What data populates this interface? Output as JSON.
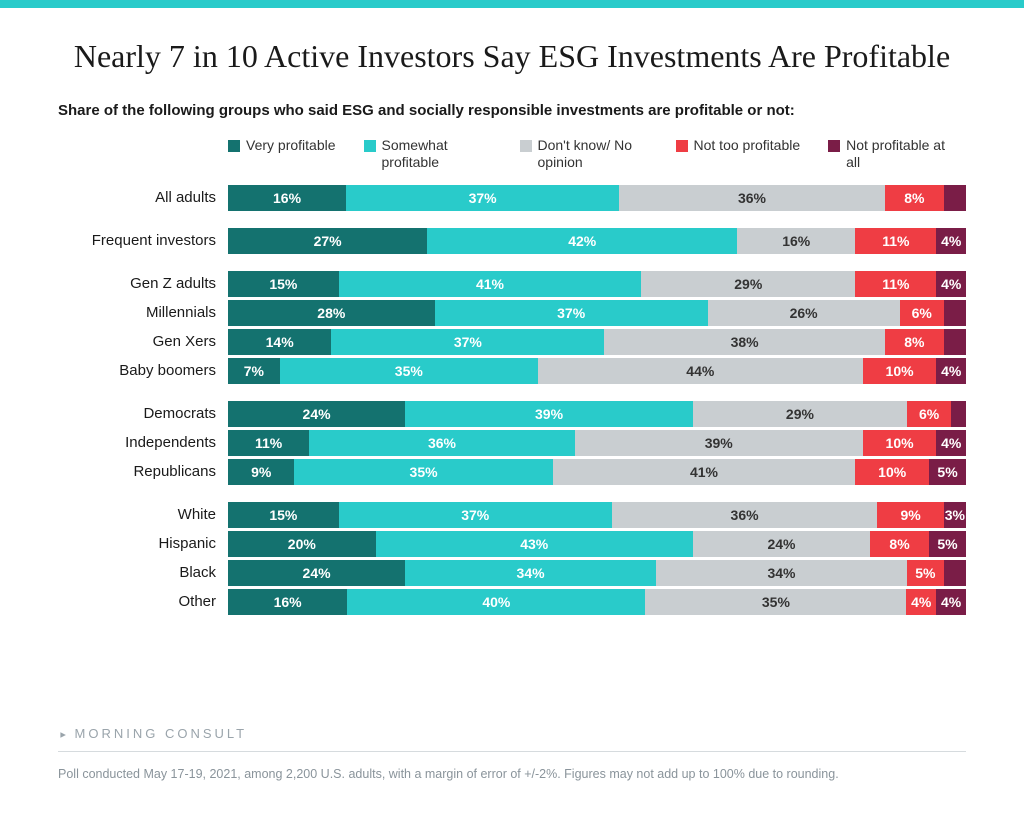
{
  "accent_bar_color": "#29cbca",
  "title": "Nearly 7 in 10 Active Investors Say ESG Investments Are Profitable",
  "subtitle": "Share of the following groups who said ESG and socially responsible investments are profitable or not:",
  "legend": [
    {
      "label": "Very profitable",
      "color": "#14726f"
    },
    {
      "label": "Somewhat profitable",
      "color": "#29cbca"
    },
    {
      "label": "Don't know/ No opinion",
      "color": "#c9ced1"
    },
    {
      "label": "Not too profitable",
      "color": "#ef3d44"
    },
    {
      "label": "Not profitable at all",
      "color": "#7a1d47"
    }
  ],
  "label_text_colors": {
    "dark_on_light": "#333333",
    "light_on_dark": "#ffffff"
  },
  "groups": [
    {
      "rows": [
        {
          "label": "All adults",
          "values": [
            16,
            37,
            36,
            8,
            3
          ],
          "show": [
            true,
            true,
            true,
            true,
            false
          ]
        }
      ]
    },
    {
      "rows": [
        {
          "label": "Frequent investors",
          "values": [
            27,
            42,
            16,
            11,
            4
          ],
          "show": [
            true,
            true,
            true,
            true,
            true
          ]
        }
      ]
    },
    {
      "rows": [
        {
          "label": "Gen Z adults",
          "values": [
            15,
            41,
            29,
            11,
            4
          ],
          "show": [
            true,
            true,
            true,
            true,
            true
          ]
        },
        {
          "label": "Millennials",
          "values": [
            28,
            37,
            26,
            6,
            3
          ],
          "show": [
            true,
            true,
            true,
            true,
            false
          ]
        },
        {
          "label": "Gen Xers",
          "values": [
            14,
            37,
            38,
            8,
            3
          ],
          "show": [
            true,
            true,
            true,
            true,
            false
          ]
        },
        {
          "label": "Baby boomers",
          "values": [
            7,
            35,
            44,
            10,
            4
          ],
          "show": [
            true,
            true,
            true,
            true,
            true
          ]
        }
      ]
    },
    {
      "rows": [
        {
          "label": "Democrats",
          "values": [
            24,
            39,
            29,
            6,
            2
          ],
          "show": [
            true,
            true,
            true,
            true,
            false
          ]
        },
        {
          "label": "Independents",
          "values": [
            11,
            36,
            39,
            10,
            4
          ],
          "show": [
            true,
            true,
            true,
            true,
            true
          ]
        },
        {
          "label": "Republicans",
          "values": [
            9,
            35,
            41,
            10,
            5
          ],
          "show": [
            true,
            true,
            true,
            true,
            true
          ]
        }
      ]
    },
    {
      "rows": [
        {
          "label": "White",
          "values": [
            15,
            37,
            36,
            9,
            3
          ],
          "show": [
            true,
            true,
            true,
            true,
            true
          ]
        },
        {
          "label": "Hispanic",
          "values": [
            20,
            43,
            24,
            8,
            5
          ],
          "show": [
            true,
            true,
            true,
            true,
            true
          ]
        },
        {
          "label": "Black",
          "values": [
            24,
            34,
            34,
            5,
            3
          ],
          "show": [
            true,
            true,
            true,
            true,
            false
          ]
        },
        {
          "label": "Other",
          "values": [
            16,
            40,
            35,
            4,
            4
          ],
          "show": [
            true,
            true,
            true,
            true,
            true
          ]
        }
      ]
    }
  ],
  "brand": "MORNING CONSULT",
  "footnote": "Poll conducted May 17-19, 2021, among 2,200 U.S. adults, with a margin of error of +/-2%. Figures may not add up to 100% due to rounding."
}
